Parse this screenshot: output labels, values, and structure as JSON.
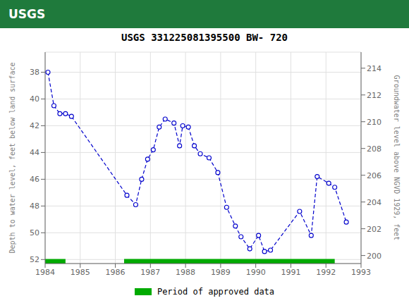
{
  "chart_data": {
    "type": "line",
    "title": "USGS 331225081395500 BW- 720",
    "annotations": [
      "USGS"
    ],
    "header_color": "#1f7a3c",
    "ylabel": "Depth to water level, feet below land surface",
    "y2label": "Groundwater level above NGVD 1929, feet",
    "x": [
      1984.08,
      1984.25,
      1984.42,
      1984.58,
      1984.75,
      1986.33,
      1986.58,
      1986.75,
      1986.92,
      1987.08,
      1987.25,
      1987.42,
      1987.67,
      1987.83,
      1987.92,
      1988.08,
      1988.25,
      1988.42,
      1988.67,
      1988.92,
      1989.17,
      1989.42,
      1989.58,
      1989.83,
      1990.08,
      1990.25,
      1990.42,
      1991.25,
      1991.58,
      1991.75,
      1992.08,
      1992.25,
      1992.58
    ],
    "series": [
      {
        "values": [
          38.0,
          40.5,
          41.1,
          41.1,
          41.3,
          47.2,
          47.9,
          46.0,
          44.5,
          43.8,
          42.1,
          41.5,
          41.8,
          43.5,
          42.0,
          42.1,
          43.5,
          44.1,
          44.4,
          45.5,
          48.1,
          49.5,
          50.3,
          51.2,
          50.2,
          51.4,
          51.3,
          48.4,
          50.2,
          45.8,
          46.3,
          46.6,
          49.2
        ],
        "color": "#0000cc",
        "marker": "circle",
        "line_style": "dashed"
      }
    ],
    "approved_segments": [
      [
        1984.0,
        1984.58
      ],
      [
        1986.25,
        1992.25
      ]
    ],
    "approved_y": 52.15,
    "approved_height": 0.38,
    "approved_color": "#00aa00",
    "legend_label": "Period of approved data",
    "xlim": [
      1984.0,
      1993.0
    ],
    "xticks": [
      1984,
      1985,
      1986,
      1987,
      1988,
      1989,
      1990,
      1991,
      1992,
      1993
    ],
    "ylim": [
      52.3,
      36.5
    ],
    "yticks": [
      38,
      40,
      42,
      44,
      46,
      48,
      50,
      52
    ],
    "y2lim": [
      199.4,
      215.2
    ],
    "y2ticks": [
      200,
      202,
      204,
      206,
      208,
      210,
      212,
      214
    ],
    "grid": true
  }
}
